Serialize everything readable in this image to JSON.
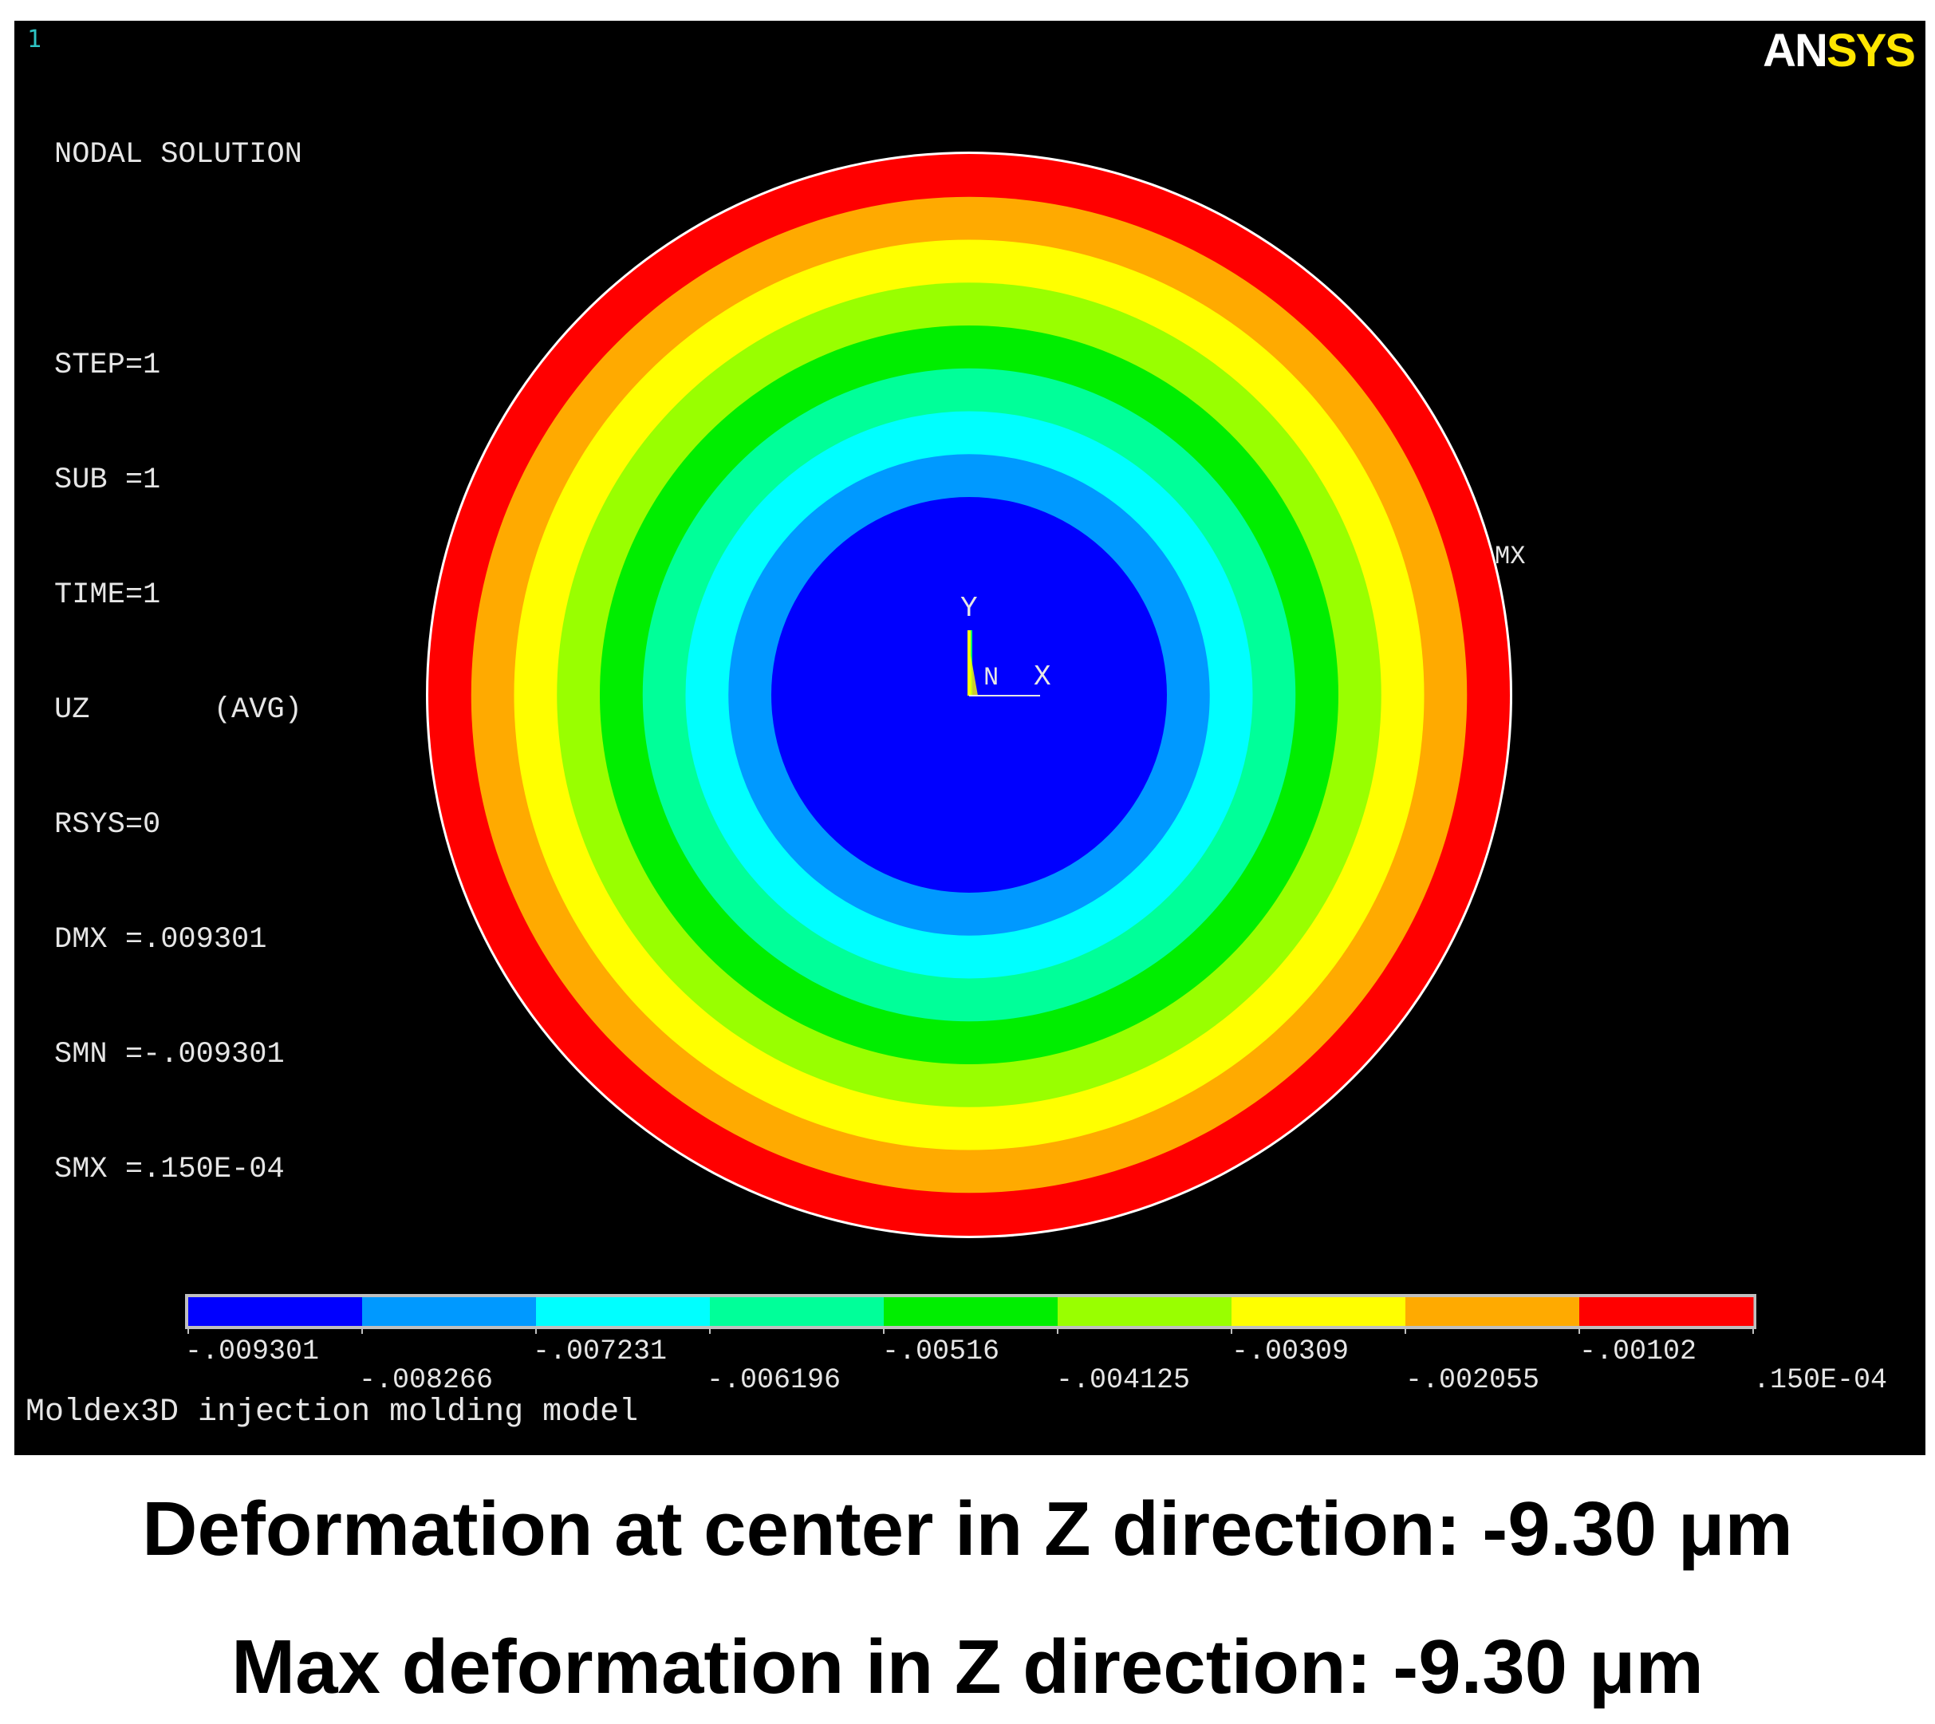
{
  "viewport": {
    "window_number": "1",
    "brand": {
      "part1": "AN",
      "part2": "SYS"
    },
    "status": {
      "title": "NODAL SOLUTION",
      "lines": [
        "STEP=1",
        "SUB =1",
        "TIME=1",
        "UZ       (AVG)",
        "RSYS=0",
        "DMX =.009301",
        "SMN =-.009301",
        "SMX =.150E-04"
      ]
    },
    "triad": {
      "y": "Y",
      "n": "N",
      "x": "X"
    },
    "mx_marker": "MX",
    "contour_colors": [
      "#0000ff",
      "#0099ff",
      "#00ffff",
      "#00ff99",
      "#00ee00",
      "#99ff00",
      "#ffff00",
      "#ffaa00",
      "#ff0000"
    ],
    "legend": {
      "ticks_top": [
        "-.009301",
        "-.007231",
        "-.00516",
        "-.00309",
        "-.00102"
      ],
      "ticks_bottom": [
        "-.008266",
        "-.006196",
        "-.004125",
        "-.002055",
        ".150E-04"
      ]
    },
    "model_title": "Moldex3D injection molding model"
  },
  "captions": {
    "center": "Deformation at center in Z direction: -9.30 μm",
    "max": "Max deformation in Z direction: -9.30 μm"
  }
}
